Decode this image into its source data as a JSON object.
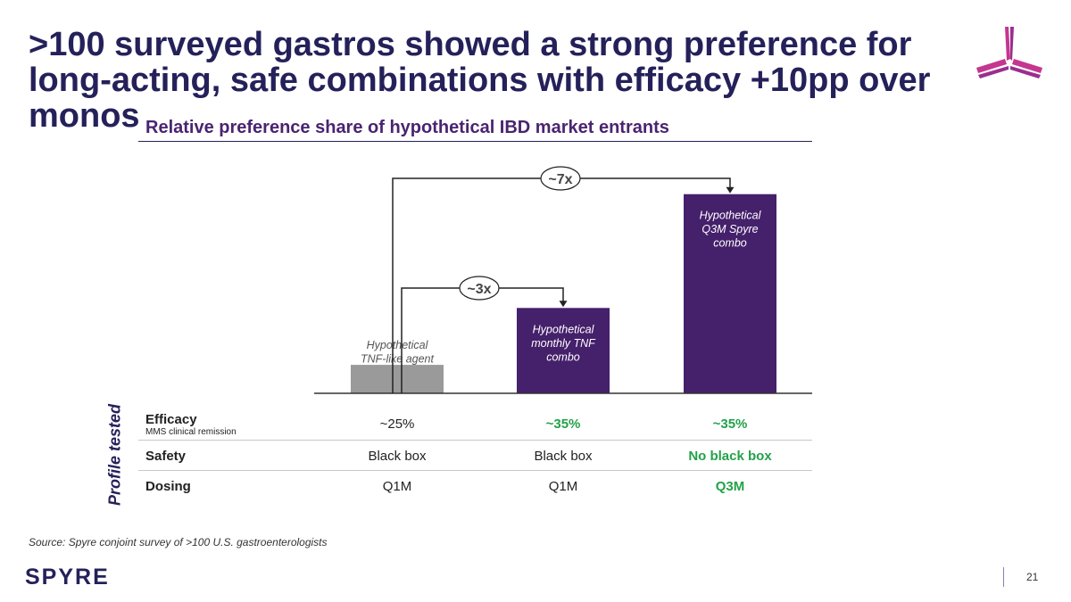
{
  "slide": {
    "title": ">100 surveyed gastros showed a strong preference for long-acting, safe combinations with efficacy +10pp over monos",
    "source": "Source: Spyre conjoint survey of >100 U.S. gastroenterologists",
    "brand": "SPYRE",
    "page_number": "21",
    "colors": {
      "title": "#24215a",
      "accent_purple": "#45206b",
      "gray_bar": "#9a9a9a",
      "highlight_green": "#22a24a"
    }
  },
  "chart_data": {
    "type": "bar",
    "title": "Relative preference share of hypothetical IBD market entrants",
    "categories": [
      "Hypothetical TNF-like agent",
      "Hypothetical monthly TNF combo",
      "Hypothetical Q3M Spyre combo"
    ],
    "category_label_lines": [
      [
        "Hypothetical",
        "TNF-like agent"
      ],
      [
        "Hypothetical",
        "monthly TNF",
        "combo"
      ],
      [
        "Hypothetical",
        "Q3M Spyre",
        "combo"
      ]
    ],
    "values": [
      1,
      3,
      7
    ],
    "bar_colors": [
      "#9a9a9a",
      "#45206b",
      "#45206b"
    ],
    "yaxis_visible": false,
    "grid": false,
    "annotations": [
      {
        "text": "~3x",
        "from": 0,
        "to": 1
      },
      {
        "text": "~7x",
        "from": 0,
        "to": 2
      }
    ]
  },
  "profile_table": {
    "side_label": "Profile tested",
    "rows": [
      {
        "label": "Efficacy",
        "sublabel": "MMS clinical remission",
        "values": [
          "~25%",
          "~35%",
          "~35%"
        ],
        "highlight": [
          false,
          true,
          true
        ]
      },
      {
        "label": "Safety",
        "sublabel": "",
        "values": [
          "Black box",
          "Black box",
          "No black box"
        ],
        "highlight": [
          false,
          false,
          true
        ]
      },
      {
        "label": "Dosing",
        "sublabel": "",
        "values": [
          "Q1M",
          "Q1M",
          "Q3M"
        ],
        "highlight": [
          false,
          false,
          true
        ]
      }
    ]
  }
}
